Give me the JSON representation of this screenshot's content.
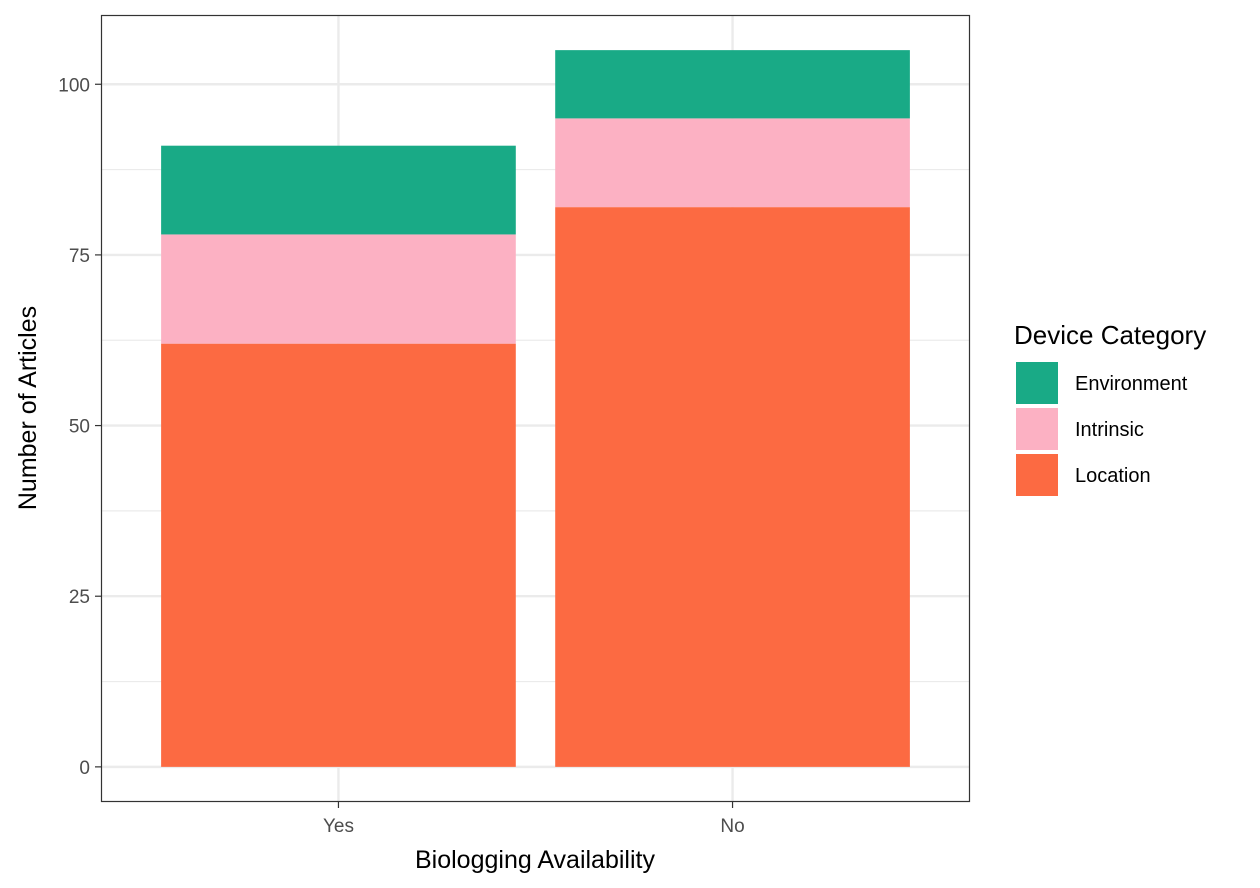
{
  "chart_data": {
    "type": "bar",
    "stacked": true,
    "xlabel": "Biologging Availability",
    "ylabel": "Number of Articles",
    "categories": [
      "Yes",
      "No"
    ],
    "series": [
      {
        "name": "Location",
        "values": [
          62,
          82
        ],
        "color": "#FC6A42"
      },
      {
        "name": "Intrinsic",
        "values": [
          16,
          13
        ],
        "color": "#FCB1C3"
      },
      {
        "name": "Environment",
        "values": [
          13,
          10
        ],
        "color": "#19AA86"
      }
    ],
    "ylim": [
      -5,
      110
    ],
    "yticks": [
      0,
      25,
      50,
      75,
      100
    ],
    "grid": true,
    "legend": {
      "title": "Device Category",
      "position": "right",
      "order": [
        "Environment",
        "Intrinsic",
        "Location"
      ]
    }
  }
}
